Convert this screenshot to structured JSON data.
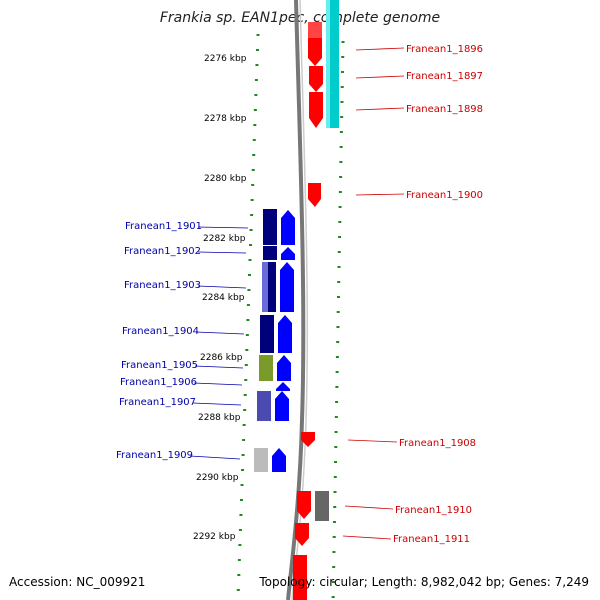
{
  "header": {
    "title": "Frankia sp. EAN1pec, complete genome"
  },
  "footer": {
    "accession": "Accession: NC_009921",
    "topology": "Topology: circular; Length: 8,982,042 bp; Genes: 7,249"
  },
  "scale_labels": [
    "2276 kbp",
    "2278 kbp",
    "2280 kbp",
    "2282 kbp",
    "2284 kbp",
    "2286 kbp",
    "2288 kbp",
    "2290 kbp",
    "2292 kbp"
  ],
  "genes_right": [
    "Franean1_1896",
    "Franean1_1897",
    "Franean1_1898",
    "Franean1_1900",
    "Franean1_1908",
    "Franean1_1910",
    "Franean1_1911"
  ],
  "genes_left": [
    "Franean1_1901",
    "Franean1_1902",
    "Franean1_1903",
    "Franean1_1904",
    "Franean1_1905",
    "Franean1_1906",
    "Franean1_1907",
    "Franean1_1909"
  ],
  "colors": {
    "forward": "#ff0000",
    "reverse": "#0000ff",
    "cog_cyan": "#00cccc",
    "cog_navy": "#00007a",
    "cog_olive": "#7a9a2a",
    "cog_gray": "#777777",
    "tick": "#228822"
  }
}
